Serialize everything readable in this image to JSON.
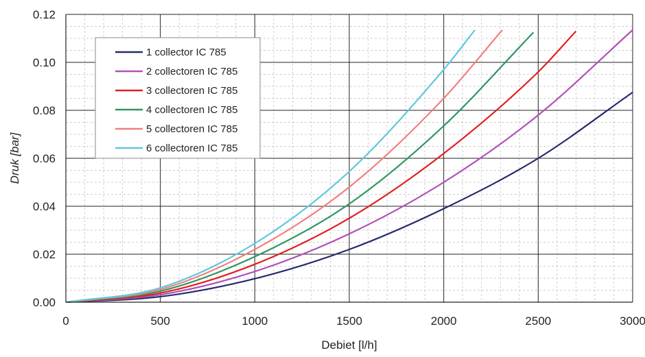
{
  "chart_data": {
    "type": "line",
    "title": "",
    "xlabel": "Debiet [l/h]",
    "ylabel": "Druk [bar]",
    "xlim": [
      0,
      3000
    ],
    "ylim": [
      0,
      0.12
    ],
    "x_ticks": [
      "0",
      "500",
      "1000",
      "1500",
      "2000",
      "2500",
      "3000"
    ],
    "y_ticks": [
      "0.00",
      "0.02",
      "0.04",
      "0.06",
      "0.08",
      "0.10",
      "0.12"
    ],
    "grid": true,
    "legend_position": "top-left",
    "series": [
      {
        "name": "1 collector IC 785",
        "color": "#262a6b",
        "x": [
          0,
          500,
          1000,
          1500,
          2000,
          2500,
          3000
        ],
        "y": [
          0,
          0.0023,
          0.0098,
          0.022,
          0.039,
          0.06,
          0.0875
        ]
      },
      {
        "name": "2 collectoren IC 785",
        "color": "#b050b8",
        "x": [
          0,
          500,
          1000,
          1500,
          2000,
          2500,
          3000
        ],
        "y": [
          0,
          0.0031,
          0.0128,
          0.0285,
          0.05,
          0.078,
          0.1135
        ]
      },
      {
        "name": "3 collectoren IC 785",
        "color": "#e02020",
        "x": [
          0,
          500,
          1000,
          1500,
          2000,
          2500,
          2700
        ],
        "y": [
          0,
          0.0038,
          0.0158,
          0.035,
          0.062,
          0.096,
          0.113
        ]
      },
      {
        "name": "4 collectoren IC 785",
        "color": "#2e9660",
        "x": [
          0,
          500,
          1000,
          1500,
          2000,
          2475
        ],
        "y": [
          0,
          0.0046,
          0.019,
          0.041,
          0.0735,
          0.1125
        ]
      },
      {
        "name": "5 collectoren IC 785",
        "color": "#f07f80",
        "x": [
          0,
          500,
          1000,
          1500,
          2000,
          2310
        ],
        "y": [
          0,
          0.0053,
          0.022,
          0.048,
          0.085,
          0.1135
        ]
      },
      {
        "name": "6 collectoren IC 785",
        "color": "#5ec8dc",
        "x": [
          0,
          500,
          1000,
          1500,
          2000,
          2165
        ],
        "y": [
          0,
          0.006,
          0.0245,
          0.0545,
          0.097,
          0.1135
        ]
      }
    ]
  }
}
